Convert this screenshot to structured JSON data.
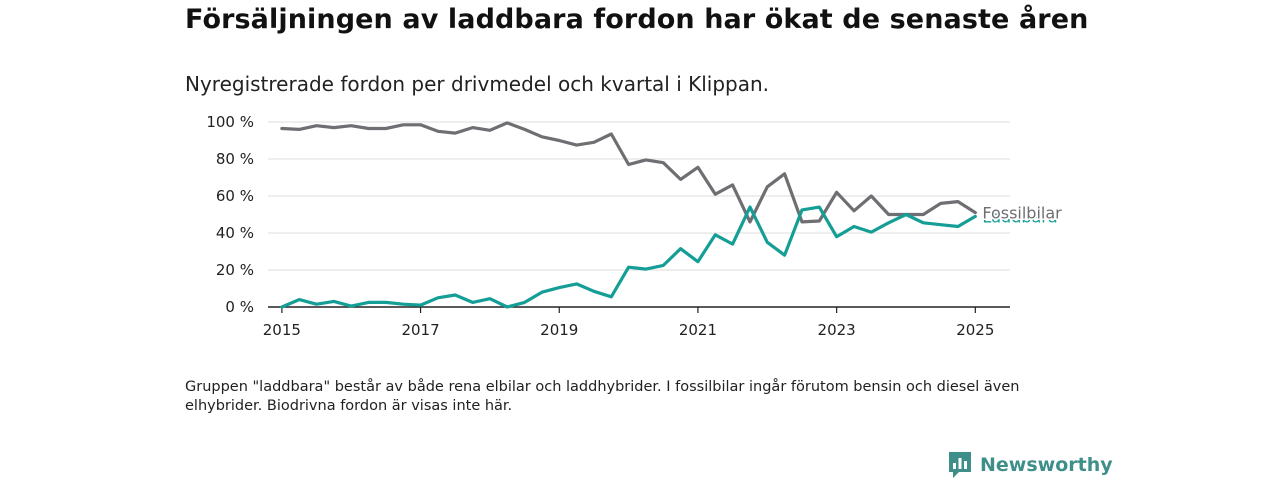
{
  "title": "Försäljningen av laddbara fordon har ökat de senaste åren",
  "subtitle": "Nyregistrerade fordon per drivmedel och kvartal i Klippan.",
  "note": "Gruppen \"laddbara\" består av både rena elbilar och laddhybrider. I fossilbilar ingår förutom bensin och diesel även elhybrider. Biodrivna fordon är visas inte här.",
  "brand": {
    "name": "Newsworthy",
    "color": "#3e8f8a"
  },
  "chart_data": {
    "type": "line",
    "x_start": 2015.0,
    "x_step": 0.25,
    "xlim": [
      2014.8,
      2025.5
    ],
    "ylim": [
      0,
      100
    ],
    "y_ticks": [
      0,
      20,
      40,
      60,
      80,
      100
    ],
    "y_tick_labels": [
      "0 %",
      "20 %",
      "40 %",
      "60 %",
      "80 %",
      "100 %"
    ],
    "x_ticks": [
      2015,
      2017,
      2019,
      2021,
      2023,
      2025
    ],
    "x_tick_labels": [
      "2015",
      "2017",
      "2019",
      "2021",
      "2023",
      "2025"
    ],
    "grid": "horizontal",
    "series": [
      {
        "name": "Fossilbilar",
        "color": "#6f6e72",
        "values": [
          96.5,
          96,
          98,
          97,
          98,
          96.5,
          96.5,
          98.5,
          98.5,
          95,
          94,
          97,
          95.5,
          99.5,
          96,
          92,
          90,
          87.5,
          89,
          93.5,
          77,
          79.5,
          78,
          69,
          75.5,
          61,
          66,
          46,
          65,
          72,
          46,
          46.5,
          62,
          52,
          60,
          50,
          50,
          50,
          56,
          57,
          51
        ]
      },
      {
        "name": "Laddbara",
        "color": "#149e96",
        "values": [
          0,
          4,
          1.5,
          3,
          0.5,
          2.5,
          2.5,
          1.5,
          1,
          5,
          6.5,
          2.5,
          4.5,
          0,
          2.5,
          8,
          10.5,
          12.5,
          8.5,
          5.5,
          21.5,
          20.5,
          22.5,
          31.5,
          24.5,
          39,
          34,
          54,
          35,
          28,
          52.5,
          54,
          38,
          43.5,
          40.5,
          45.5,
          50,
          45.5,
          44.5,
          43.5,
          49
        ]
      }
    ]
  }
}
